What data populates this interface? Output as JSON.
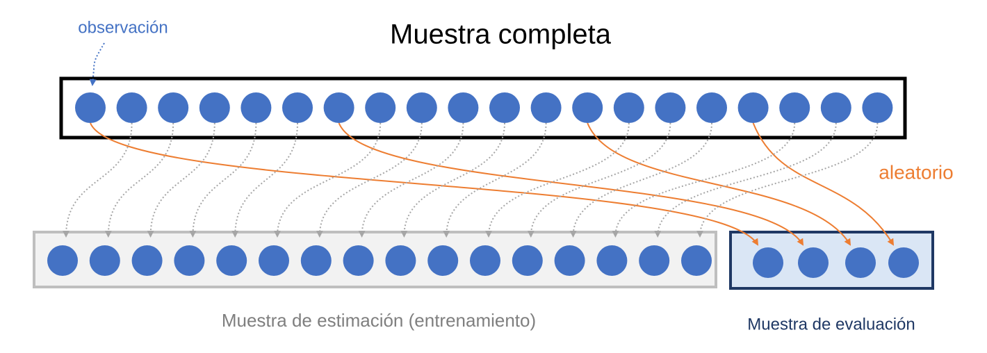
{
  "title": "Muestra completa",
  "annotations": {
    "observation": "observación",
    "random": "aleatorio"
  },
  "groups": {
    "estimation": "Muestra de estimación (entrenamiento)",
    "evaluation": "Muestra de evaluación"
  }
}
